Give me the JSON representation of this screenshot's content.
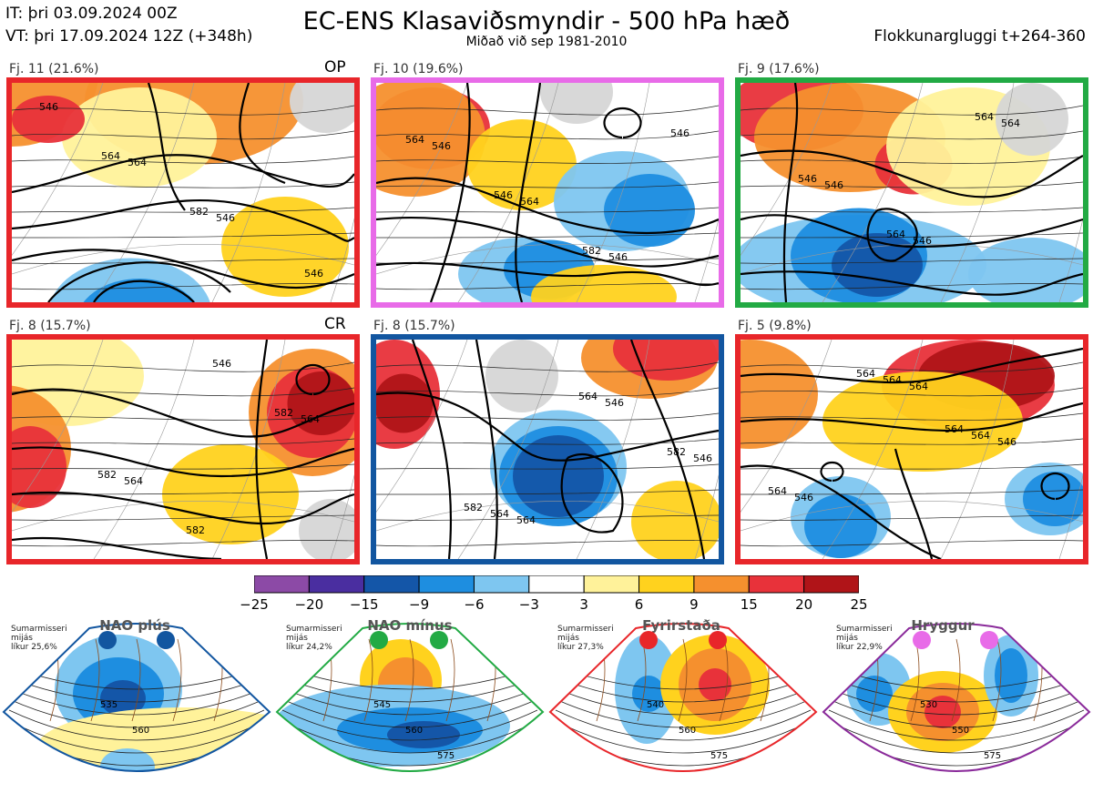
{
  "header": {
    "it": "IT: þri 03.09.2024 00Z",
    "vt": "VT: þri 17.09.2024 12Z  (+348h)",
    "title": "EC-ENS Klasaviðsmyndir - 500 hPa hæð",
    "subtitle": "Miðað við sep 1981-2010",
    "window": "Flokkunargluggi t+264-360"
  },
  "colors": {
    "red": "#e8262a",
    "pink": "#e86be8",
    "green": "#22aa44",
    "blue": "#1256a0",
    "purple": "#8a2a9a"
  },
  "panels": [
    {
      "label": "Fj. 11 (21.6%)",
      "tag": "OP",
      "border": "#e8262a",
      "contours": [
        "546",
        "564",
        "546",
        "546",
        "564",
        "582"
      ]
    },
    {
      "label": "Fj. 10 (19.6%)",
      "tag": "",
      "border": "#e86be8",
      "contours": [
        "546",
        "564",
        "546",
        "564",
        "546",
        "582",
        "546"
      ]
    },
    {
      "label": "Fj. 9 (17.6%)",
      "tag": "",
      "border": "#22aa44",
      "contours": [
        "546",
        "546",
        "564",
        "546",
        "564",
        "564"
      ]
    },
    {
      "label": "Fj. 8 (15.7%)",
      "tag": "CR",
      "border": "#e8262a",
      "contours": [
        "564",
        "546",
        "564",
        "582",
        "582",
        "582"
      ]
    },
    {
      "label": "Fj. 8 (15.7%)",
      "tag": "",
      "border": "#1256a0",
      "contours": [
        "564",
        "546",
        "546",
        "564",
        "564",
        "582",
        "582"
      ]
    },
    {
      "label": "Fj. 5 (9.8%)",
      "tag": "",
      "border": "#e8262a",
      "contours": [
        "564",
        "546",
        "546",
        "564",
        "564",
        "564",
        "564",
        "564"
      ]
    }
  ],
  "colorbar": {
    "ticks": [
      "−25",
      "−20",
      "−15",
      "−9",
      "−6",
      "−3",
      "3",
      "6",
      "9",
      "15",
      "20",
      "25"
    ],
    "colors": [
      "#8c4aa6",
      "#4a2ea0",
      "#1456a8",
      "#1e8ee0",
      "#7ec6f0",
      "#ffffff",
      "#fff29a",
      "#ffd21e",
      "#f5902e",
      "#e8323a",
      "#b01418"
    ]
  },
  "regimes": [
    {
      "name": "NAO plús",
      "info": [
        "Sumarmisseri",
        "mijás",
        "líkur 25,6%"
      ],
      "border": "#1256a0",
      "dot": "#1256a0",
      "contours": [
        "535",
        "560"
      ]
    },
    {
      "name": "NAO mínus",
      "info": [
        "Sumarmisseri",
        "mijás",
        "líkur 24,2%"
      ],
      "border": "#22aa44",
      "dot": "#22aa44",
      "contours": [
        "545",
        "560",
        "575"
      ]
    },
    {
      "name": "Fyrirstaða",
      "info": [
        "Sumarmisseri",
        "mijás",
        "líkur 27,3%"
      ],
      "border": "#e8262a",
      "dot": "#e8262a",
      "contours": [
        "540",
        "560",
        "575"
      ]
    },
    {
      "name": "Hryggur",
      "info": [
        "Sumarmisseri",
        "mijás",
        "líkur 22,9%"
      ],
      "border": "#8a2a9a",
      "dot": "#e86be8",
      "contours": [
        "530",
        "550",
        "575"
      ]
    }
  ]
}
